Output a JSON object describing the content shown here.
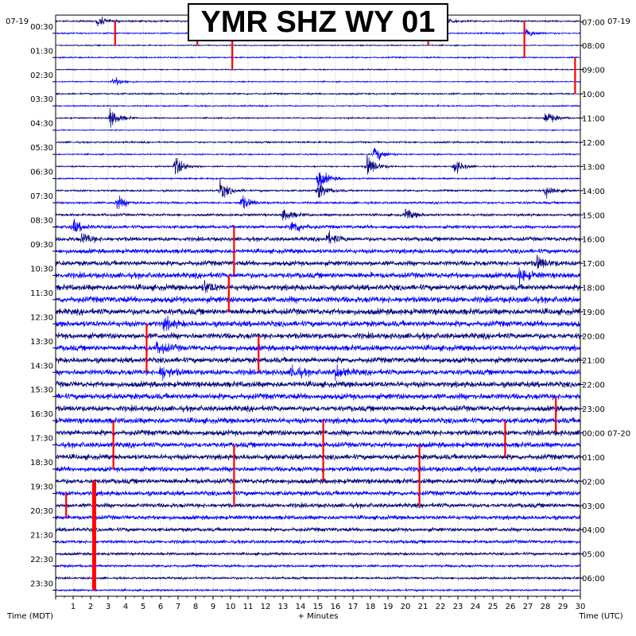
{
  "title": "YMR SHZ WY 01",
  "date_left": "07-19",
  "date_right": "07-19",
  "left_axis_label": "Time (MDT)",
  "right_axis_label": "Time (UTC)",
  "bottom_axis_label": "+ Minutes",
  "colors": {
    "trace_dark": "#00007f",
    "trace_blue": "#0000ff",
    "event_red": "#ff0000",
    "grid": "#9a9a9a",
    "axis": "#000000"
  },
  "chart_data": {
    "type": "helicorder",
    "station": "YMR",
    "channel": "SHZ",
    "network": "WY",
    "location": "01",
    "xlabel": "+ Minutes",
    "xlim": [
      0,
      30
    ],
    "x_ticks": [
      1,
      2,
      3,
      4,
      5,
      6,
      7,
      8,
      9,
      10,
      11,
      12,
      13,
      14,
      15,
      16,
      17,
      18,
      19,
      20,
      21,
      22,
      23,
      24,
      25,
      26,
      27,
      28,
      29,
      30
    ],
    "rows_per_hour": 2,
    "row_count": 48,
    "left_ticks": [
      "00:30",
      "01:30",
      "02:30",
      "03:30",
      "04:30",
      "05:30",
      "06:30",
      "07:30",
      "08:30",
      "09:30",
      "10:30",
      "11:30",
      "12:30",
      "13:30",
      "14:30",
      "15:30",
      "16:30",
      "17:30",
      "18:30",
      "19:30",
      "20:30",
      "21:30",
      "22:30",
      "23:30"
    ],
    "right_ticks": [
      "07:00",
      "08:00",
      "09:00",
      "10:00",
      "11:00",
      "12:00",
      "13:00",
      "14:00",
      "15:00",
      "16:00",
      "17:00",
      "18:00",
      "19:00",
      "20:00",
      "21:00",
      "22:00",
      "23:00",
      "00:00 07-20",
      "01:00",
      "02:00",
      "03:00",
      "04:00",
      "05:00",
      "06:00"
    ],
    "trace_color_cycle": [
      "#00007f",
      "#0000ff"
    ],
    "noise_level_by_row": [
      0.6,
      0.5,
      0.4,
      0.5,
      0.4,
      0.4,
      0.6,
      0.5,
      0.5,
      0.4,
      0.6,
      0.5,
      0.5,
      0.6,
      0.7,
      0.8,
      0.9,
      1.2,
      1.5,
      1.6,
      1.8,
      2.0,
      2.1,
      2.2,
      2.2,
      2.1,
      2.1,
      2.0,
      2.0,
      2.0,
      2.1,
      2.1,
      2.0,
      2.0,
      2.0,
      1.9,
      1.9,
      1.8,
      1.8,
      1.7,
      1.6,
      1.5,
      1.4,
      1.2,
      1.0,
      0.9,
      0.8,
      0.7
    ],
    "events": [
      {
        "row": 0,
        "minute": 2.4,
        "amp": 6,
        "color": "#0000ff"
      },
      {
        "row": 0,
        "minute": 8.3,
        "amp": 5,
        "color": "#0000ff"
      },
      {
        "row": 0,
        "minute": 22.0,
        "amp": 6,
        "color": "#0000ff"
      },
      {
        "row": 1,
        "minute": 26.9,
        "amp": 5,
        "color": "#0000ff"
      },
      {
        "row": 5,
        "minute": 3.3,
        "amp": 6,
        "color": "#0000ff"
      },
      {
        "row": 8,
        "minute": 3.1,
        "amp": 12,
        "color": "#00007f"
      },
      {
        "row": 8,
        "minute": 28.0,
        "amp": 9,
        "color": "#00007f"
      },
      {
        "row": 11,
        "minute": 18.2,
        "amp": 10,
        "color": "#0000ff"
      },
      {
        "row": 12,
        "minute": 17.8,
        "amp": 14,
        "color": "#00007f"
      },
      {
        "row": 12,
        "minute": 6.8,
        "amp": 13,
        "color": "#00007f"
      },
      {
        "row": 12,
        "minute": 22.8,
        "amp": 9,
        "color": "#00007f"
      },
      {
        "row": 13,
        "minute": 15.0,
        "amp": 13,
        "color": "#0000ff"
      },
      {
        "row": 14,
        "minute": 9.4,
        "amp": 11,
        "color": "#00007f"
      },
      {
        "row": 14,
        "minute": 15.0,
        "amp": 10,
        "color": "#00007f"
      },
      {
        "row": 14,
        "minute": 28.0,
        "amp": 9,
        "color": "#00007f"
      },
      {
        "row": 15,
        "minute": 3.5,
        "amp": 8,
        "color": "#0000ff"
      },
      {
        "row": 15,
        "minute": 10.6,
        "amp": 9,
        "color": "#0000ff"
      },
      {
        "row": 16,
        "minute": 13.0,
        "amp": 8,
        "color": "#00007f"
      },
      {
        "row": 16,
        "minute": 20.0,
        "amp": 7,
        "color": "#00007f"
      },
      {
        "row": 17,
        "minute": 13.5,
        "amp": 9,
        "color": "#0000ff"
      },
      {
        "row": 17,
        "minute": 1.0,
        "amp": 8,
        "color": "#0000ff"
      },
      {
        "row": 18,
        "minute": 15.5,
        "amp": 8,
        "color": "#00007f"
      },
      {
        "row": 18,
        "minute": 1.5,
        "amp": 7,
        "color": "#00007f"
      },
      {
        "row": 20,
        "minute": 27.5,
        "amp": 8,
        "color": "#00007f"
      },
      {
        "row": 21,
        "minute": 26.5,
        "amp": 8,
        "color": "#0000ff"
      },
      {
        "row": 22,
        "minute": 8.5,
        "amp": 7,
        "color": "#00007f"
      },
      {
        "row": 25,
        "minute": 6.2,
        "amp": 7,
        "color": "#0000ff"
      },
      {
        "row": 27,
        "minute": 5.8,
        "amp": 8,
        "color": "#00007f"
      },
      {
        "row": 29,
        "minute": 6.0,
        "amp": 9,
        "color": "#0000ff"
      },
      {
        "row": 29,
        "minute": 16.0,
        "amp": 8,
        "color": "#0000ff"
      },
      {
        "row": 29,
        "minute": 13.5,
        "amp": 7,
        "color": "#0000ff"
      }
    ],
    "red_bursts": [
      {
        "minute": 3.4,
        "row_start": 0,
        "row_end": 2
      },
      {
        "minute": 8.1,
        "row_start": 0,
        "row_end": 2
      },
      {
        "minute": 10.1,
        "row_start": 1,
        "row_end": 4
      },
      {
        "minute": 21.3,
        "row_start": 0,
        "row_end": 2
      },
      {
        "minute": 26.8,
        "row_start": 0,
        "row_end": 3
      },
      {
        "minute": 29.7,
        "row_start": 3,
        "row_end": 6
      },
      {
        "minute": 10.2,
        "row_start": 17,
        "row_end": 21
      },
      {
        "minute": 9.9,
        "row_start": 21,
        "row_end": 24
      },
      {
        "minute": 5.2,
        "row_start": 25,
        "row_end": 29
      },
      {
        "minute": 11.6,
        "row_start": 26,
        "row_end": 29
      },
      {
        "minute": 28.6,
        "row_start": 31,
        "row_end": 34
      },
      {
        "minute": 25.7,
        "row_start": 33,
        "row_end": 36
      },
      {
        "minute": 3.3,
        "row_start": 33,
        "row_end": 37
      },
      {
        "minute": 15.3,
        "row_start": 33,
        "row_end": 38
      },
      {
        "minute": 10.2,
        "row_start": 35,
        "row_end": 40
      },
      {
        "minute": 20.8,
        "row_start": 35,
        "row_end": 40
      },
      {
        "minute": 2.2,
        "row_start": 38,
        "row_end": 47
      },
      {
        "minute": 0.6,
        "row_start": 39,
        "row_end": 41
      }
    ]
  }
}
